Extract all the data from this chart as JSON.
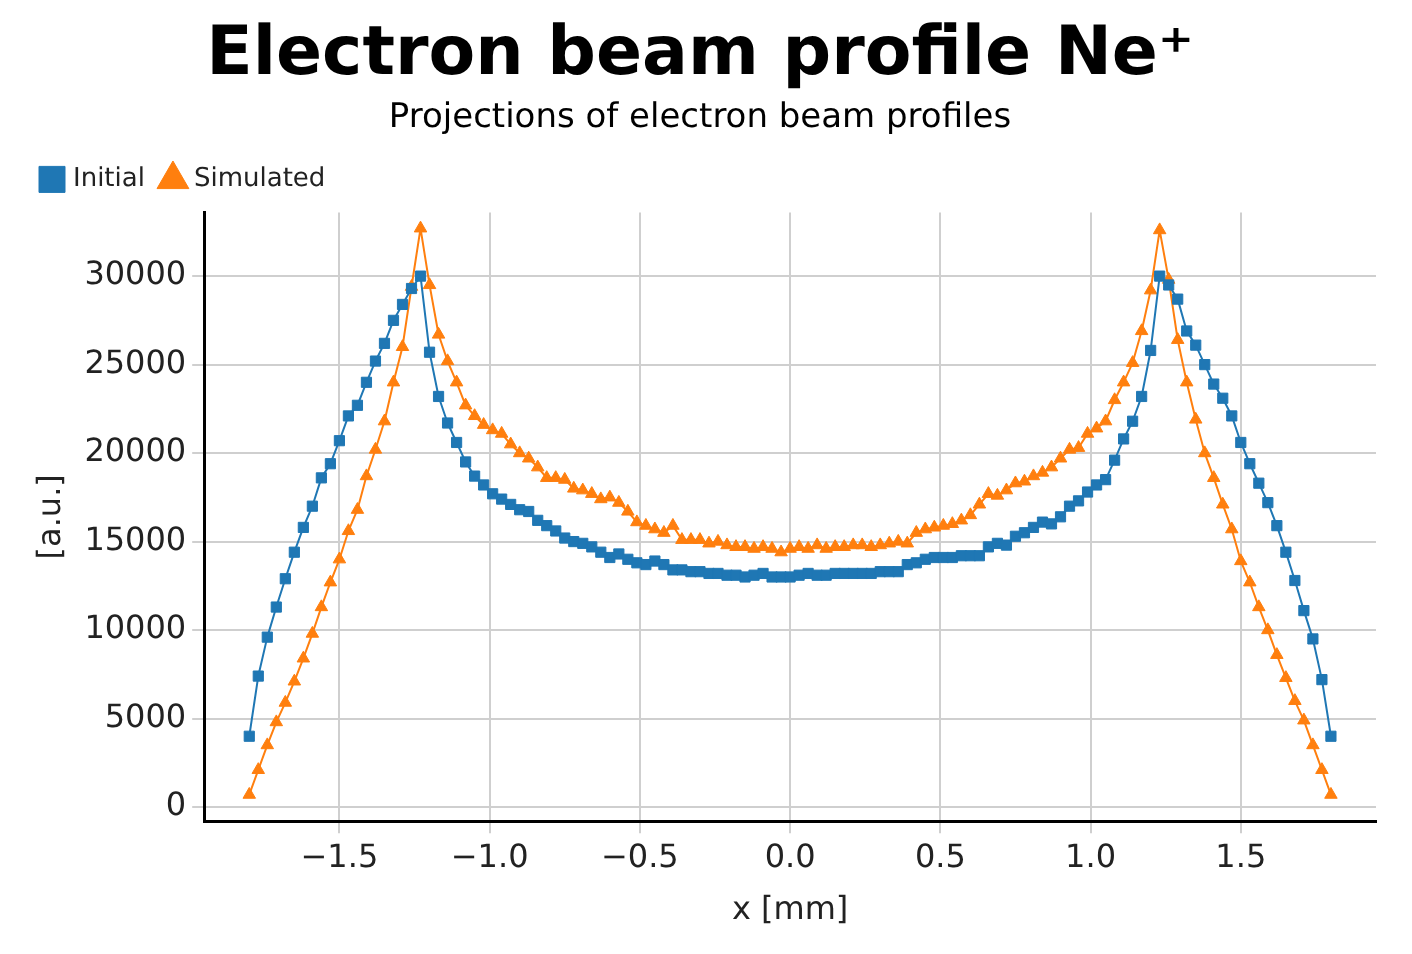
{
  "chart_data": {
    "type": "line",
    "title": "Electron beam profile Ne⁺",
    "subtitle": "Projections of electron beam profiles",
    "xlabel": "x [mm]",
    "ylabel": "[a.u.]",
    "x": [
      -1.8,
      -1.77,
      -1.74,
      -1.71,
      -1.68,
      -1.65,
      -1.62,
      -1.59,
      -1.56,
      -1.53,
      -1.5,
      -1.47,
      -1.44,
      -1.41,
      -1.38,
      -1.35,
      -1.32,
      -1.29,
      -1.26,
      -1.23,
      -1.2,
      -1.17,
      -1.14,
      -1.11,
      -1.08,
      -1.05,
      -1.02,
      -0.99,
      -0.96,
      -0.93,
      -0.9,
      -0.87,
      -0.84,
      -0.81,
      -0.78,
      -0.75,
      -0.72,
      -0.69,
      -0.66,
      -0.63,
      -0.6,
      -0.57,
      -0.54,
      -0.51,
      -0.48,
      -0.45,
      -0.42,
      -0.39,
      -0.36,
      -0.33,
      -0.3,
      -0.27,
      -0.24,
      -0.21,
      -0.18,
      -0.15,
      -0.12,
      -0.09,
      -0.06,
      -0.03,
      0,
      0.03,
      0.06,
      0.09,
      0.12,
      0.15,
      0.18,
      0.21,
      0.24,
      0.27,
      0.3,
      0.33,
      0.36,
      0.39,
      0.42,
      0.45,
      0.48,
      0.51,
      0.54,
      0.57,
      0.6,
      0.63,
      0.66,
      0.69,
      0.72,
      0.75,
      0.78,
      0.81,
      0.84,
      0.87,
      0.9,
      0.93,
      0.96,
      0.99,
      1.02,
      1.05,
      1.08,
      1.11,
      1.14,
      1.17,
      1.2,
      1.23,
      1.26,
      1.29,
      1.32,
      1.35,
      1.38,
      1.41,
      1.44,
      1.47,
      1.5,
      1.53,
      1.56,
      1.59,
      1.62,
      1.65,
      1.68,
      1.71,
      1.74,
      1.77,
      1.8
    ],
    "series": [
      {
        "name": "Initial",
        "color": "#1f77b4",
        "marker": "square",
        "values": [
          4000,
          7400,
          9600,
          11300,
          12900,
          14400,
          15800,
          17000,
          18600,
          19400,
          20700,
          22100,
          22700,
          24000,
          25200,
          26200,
          27500,
          28400,
          29300,
          30000,
          25700,
          23200,
          21700,
          20600,
          19500,
          18700,
          18200,
          17700,
          17400,
          17100,
          16800,
          16700,
          16200,
          15900,
          15600,
          15200,
          15000,
          14900,
          14700,
          14400,
          14100,
          14300,
          14000,
          13800,
          13700,
          13900,
          13700,
          13400,
          13400,
          13300,
          13300,
          13200,
          13200,
          13100,
          13100,
          13000,
          13100,
          13200,
          13000,
          13000,
          13000,
          13100,
          13200,
          13100,
          13100,
          13200,
          13200,
          13200,
          13200,
          13200,
          13300,
          13300,
          13300,
          13700,
          13800,
          14000,
          14100,
          14100,
          14100,
          14200,
          14200,
          14200,
          14700,
          14900,
          14800,
          15300,
          15500,
          15800,
          16100,
          16000,
          16400,
          17000,
          17300,
          17800,
          18200,
          18500,
          19600,
          20800,
          21800,
          23200,
          25800,
          30000,
          29500,
          28700,
          26900,
          26100,
          25000,
          23900,
          23100,
          22100,
          20600,
          19400,
          18300,
          17200,
          15900,
          14400,
          12800,
          11100,
          9500,
          7200,
          4000
        ]
      },
      {
        "name": "Simulated",
        "color": "#ff7f0e",
        "marker": "triangle",
        "values": [
          700,
          2100,
          3500,
          4800,
          5900,
          7100,
          8400,
          9800,
          11300,
          12700,
          14000,
          15600,
          16800,
          18700,
          20200,
          21800,
          24000,
          26000,
          29400,
          32700,
          29500,
          26700,
          25200,
          24000,
          22700,
          22100,
          21600,
          21300,
          21100,
          20500,
          20000,
          19700,
          19200,
          18600,
          18600,
          18500,
          18000,
          17900,
          17700,
          17400,
          17500,
          17200,
          16700,
          16100,
          15900,
          15700,
          15500,
          15900,
          15100,
          15100,
          15100,
          14900,
          15000,
          14800,
          14700,
          14700,
          14600,
          14700,
          14600,
          14400,
          14600,
          14700,
          14600,
          14800,
          14600,
          14700,
          14700,
          14800,
          14800,
          14700,
          14800,
          14900,
          15000,
          14900,
          15500,
          15700,
          15800,
          15900,
          16000,
          16200,
          16500,
          17100,
          17700,
          17600,
          17900,
          18300,
          18400,
          18700,
          18900,
          19200,
          19700,
          20200,
          20300,
          21100,
          21400,
          21800,
          23000,
          24000,
          25100,
          26900,
          29200,
          32600,
          29800,
          26400,
          24000,
          21900,
          20000,
          18600,
          17100,
          15700,
          13900,
          12700,
          11300,
          10000,
          8600,
          7300,
          6000,
          4900,
          3500,
          2100,
          700
        ]
      }
    ],
    "xlim": [
      -1.95,
      1.95
    ],
    "xticks": [
      {
        "value": -1.5,
        "label": "−1.5"
      },
      {
        "value": -1,
        "label": "−1.0"
      },
      {
        "value": -0.5,
        "label": "−0.5"
      },
      {
        "value": 0,
        "label": "0.0"
      },
      {
        "value": 0.5,
        "label": "0.5"
      },
      {
        "value": 1,
        "label": "1.0"
      },
      {
        "value": 1.5,
        "label": "1.5"
      }
    ],
    "ylim": [
      -800,
      33600
    ],
    "yticks": [
      0,
      5000,
      10000,
      15000,
      20000,
      25000,
      30000
    ],
    "grid": true,
    "legend": "top left"
  }
}
